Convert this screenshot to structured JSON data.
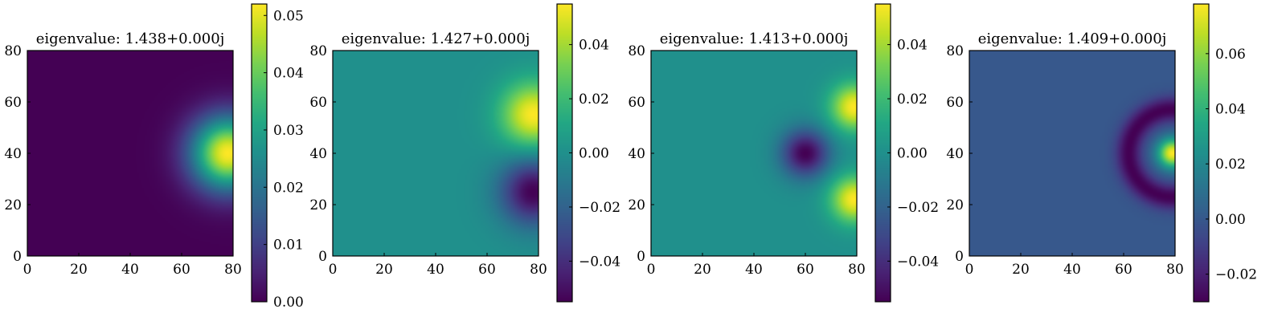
{
  "chart_data": [
    {
      "type": "heatmap",
      "title": "eigenvalue: 1.438+0.000j",
      "xlim": [
        0,
        80
      ],
      "ylim": [
        0,
        80
      ],
      "xticks": [
        0,
        20,
        40,
        60,
        80
      ],
      "yticks": [
        0,
        20,
        40,
        60,
        80
      ],
      "xtick_labels": [
        "0",
        "20",
        "40",
        "60",
        "80"
      ],
      "ytick_labels": [
        "0",
        "20",
        "40",
        "60",
        "80"
      ],
      "colormap": "viridis",
      "colorbar": {
        "range": [
          0.0,
          0.052
        ],
        "ticks": [
          0.0,
          0.01,
          0.02,
          0.03,
          0.04,
          0.05
        ],
        "tick_labels": [
          "0.00",
          "0.01",
          "0.02",
          "0.03",
          "0.04",
          "0.05"
        ]
      },
      "field": {
        "description": "single positive lobe centered near right edge",
        "lobes": [
          {
            "cx": 78,
            "cy": 40,
            "sigma": 10,
            "amp": 0.052
          }
        ],
        "baseline": 0.0
      }
    },
    {
      "type": "heatmap",
      "title": "eigenvalue: 1.427+0.000j",
      "xlim": [
        0,
        80
      ],
      "ylim": [
        0,
        80
      ],
      "xticks": [
        0,
        20,
        40,
        60,
        80
      ],
      "yticks": [
        0,
        20,
        40,
        60,
        80
      ],
      "xtick_labels": [
        "0",
        "20",
        "40",
        "60",
        "80"
      ],
      "ytick_labels": [
        "0",
        "20",
        "40",
        "60",
        "80"
      ],
      "colormap": "viridis",
      "colorbar": {
        "range": [
          -0.055,
          0.055
        ],
        "ticks": [
          -0.04,
          -0.02,
          0.0,
          0.02,
          0.04
        ],
        "tick_labels": [
          "−0.04",
          "−0.02",
          "0.00",
          "0.02",
          "0.04"
        ]
      },
      "field": {
        "description": "positive lobe upper right, negative lobe lower right",
        "lobes": [
          {
            "cx": 78,
            "cy": 55,
            "sigma": 9,
            "amp": 0.055
          },
          {
            "cx": 78,
            "cy": 25,
            "sigma": 9,
            "amp": -0.055
          }
        ],
        "baseline": 0.0
      }
    },
    {
      "type": "heatmap",
      "title": "eigenvalue: 1.413+0.000j",
      "xlim": [
        0,
        80
      ],
      "ylim": [
        0,
        80
      ],
      "xticks": [
        0,
        20,
        40,
        60,
        80
      ],
      "yticks": [
        0,
        20,
        40,
        60,
        80
      ],
      "xtick_labels": [
        "0",
        "20",
        "40",
        "60",
        "80"
      ],
      "ytick_labels": [
        "0",
        "20",
        "40",
        "60",
        "80"
      ],
      "colormap": "viridis",
      "colorbar": {
        "range": [
          -0.055,
          0.055
        ],
        "ticks": [
          -0.04,
          -0.02,
          0.0,
          0.02,
          0.04
        ],
        "tick_labels": [
          "−0.04",
          "−0.02",
          "0.00",
          "0.02",
          "0.04"
        ]
      },
      "field": {
        "description": "two positive lobes at right edge top and bottom, negative lobe at left center",
        "lobes": [
          {
            "cx": 79,
            "cy": 58,
            "sigma": 6.5,
            "amp": 0.055
          },
          {
            "cx": 79,
            "cy": 22,
            "sigma": 6.5,
            "amp": 0.055
          },
          {
            "cx": 60,
            "cy": 40,
            "sigma": 6.5,
            "amp": -0.055
          }
        ],
        "baseline": 0.0
      }
    },
    {
      "type": "heatmap",
      "title": "eigenvalue: 1.409+0.000j",
      "xlim": [
        0,
        80
      ],
      "ylim": [
        0,
        80
      ],
      "xticks": [
        0,
        20,
        40,
        60,
        80
      ],
      "yticks": [
        0,
        20,
        40,
        60,
        80
      ],
      "xtick_labels": [
        "0",
        "20",
        "40",
        "60",
        "80"
      ],
      "ytick_labels": [
        "0",
        "20",
        "40",
        "60",
        "80"
      ],
      "colormap": "viridis",
      "colorbar": {
        "range": [
          -0.03,
          0.078
        ],
        "ticks": [
          -0.02,
          0.0,
          0.02,
          0.04,
          0.06
        ],
        "tick_labels": [
          "−0.02",
          "0.00",
          "0.02",
          "0.04",
          "0.06"
        ]
      },
      "field": {
        "description": "central positive peak at right edge surrounded by negative ring",
        "ring": {
          "cx": 79,
          "cy": 40,
          "peak_sigma": 4,
          "peak_amp": 0.078,
          "ring_radius": 17,
          "ring_width": 3.5,
          "ring_amp": -0.03
        },
        "baseline": 0.0
      }
    }
  ]
}
